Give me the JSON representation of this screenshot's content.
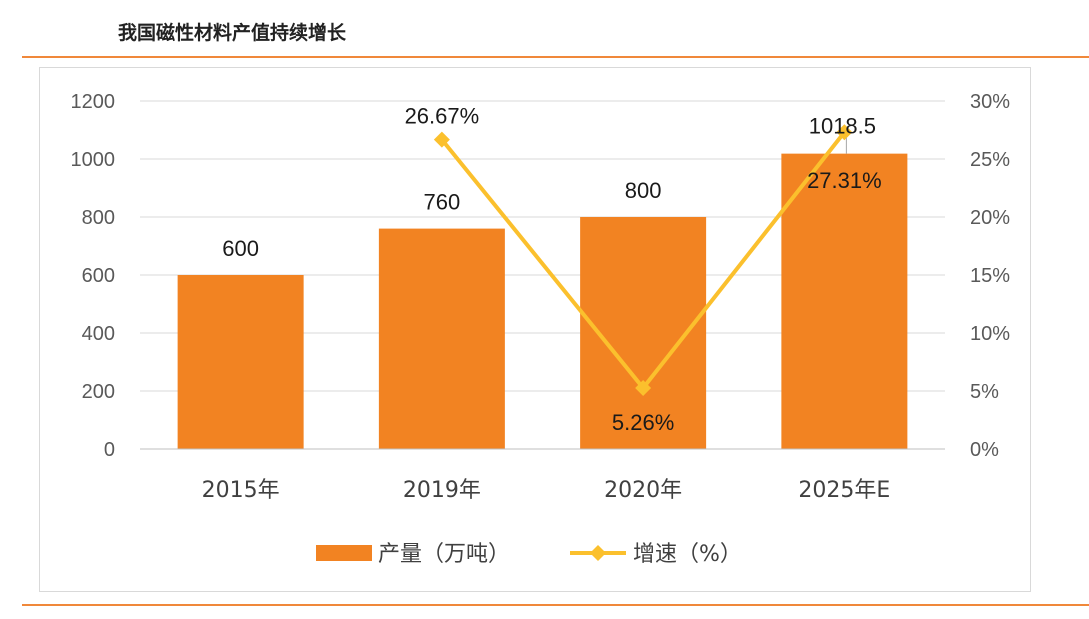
{
  "page": {
    "title": "我国磁性材料产值持续增长"
  },
  "chart_data": {
    "type": "bar",
    "categories": [
      "2015年",
      "2019年",
      "2020年",
      "2025年E"
    ],
    "series": [
      {
        "name": "产量（万吨）",
        "type": "bar",
        "axis": "left",
        "values": [
          600,
          760,
          800,
          1018.5
        ],
        "labels": [
          "600",
          "760",
          "800",
          "1018.5"
        ],
        "color": "#F28322"
      },
      {
        "name": "增速（%）",
        "type": "line",
        "axis": "right",
        "values": [
          null,
          26.67,
          5.26,
          27.31
        ],
        "labels": [
          "",
          "26.67%",
          "5.26%",
          "27.31%"
        ],
        "color": "#FBC02D"
      }
    ],
    "y_left": {
      "min": 0,
      "max": 1200,
      "ticks": [
        "0",
        "200",
        "400",
        "600",
        "800",
        "1000",
        "1200"
      ]
    },
    "y_right": {
      "min": 0,
      "max": 30,
      "ticks": [
        "0%",
        "5%",
        "10%",
        "15%",
        "20%",
        "25%",
        "30%"
      ]
    },
    "grid": true,
    "legend_position": "bottom"
  }
}
